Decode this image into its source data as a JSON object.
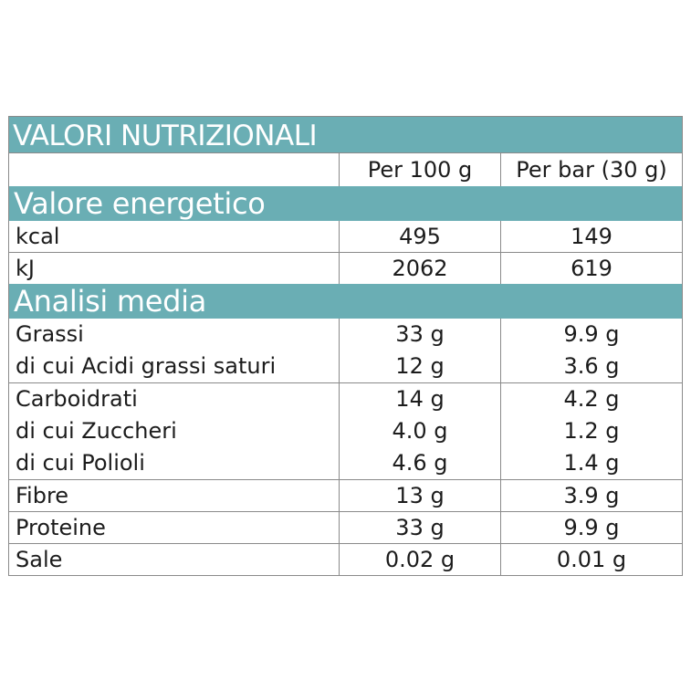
{
  "title": "VALORI NUTRIZIONALI",
  "columns": {
    "per100": "Per 100 g",
    "perBar": "Per bar (30 g)"
  },
  "sections": {
    "energy": "Valore energetico",
    "analysis": "Analisi media"
  },
  "energy_rows": [
    {
      "label": "kcal",
      "per100": "495",
      "perBar": "149"
    },
    {
      "label": "kJ",
      "per100": "2062",
      "perBar": "619"
    }
  ],
  "analysis_rows": [
    {
      "label": "Grassi",
      "per100": "33 g",
      "perBar": "9.9 g"
    },
    {
      "label": "di cui Acidi grassi saturi",
      "per100": "12 g",
      "perBar": "3.6 g"
    },
    {
      "label": "Carboidrati",
      "per100": "14 g",
      "perBar": "4.2 g"
    },
    {
      "label": "di cui Zuccheri",
      "per100": "4.0 g",
      "perBar": "1.2 g"
    },
    {
      "label": "di cui Polioli",
      "per100": "4.6 g",
      "perBar": "1.4 g"
    },
    {
      "label": "Fibre",
      "per100": "13 g",
      "perBar": "3.9 g"
    },
    {
      "label": "Proteine",
      "per100": "33 g",
      "perBar": "9.9 g"
    },
    {
      "label": "Sale",
      "per100": "0.02 g",
      "perBar": "0.01 g"
    }
  ],
  "colors": {
    "band": "#6aaeb4",
    "grid": "#8a8a8a"
  }
}
